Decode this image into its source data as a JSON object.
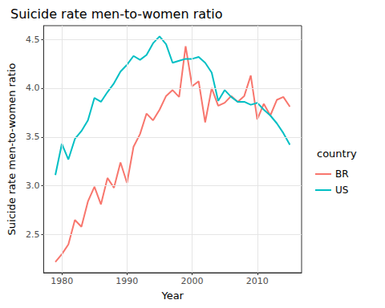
{
  "chart_data": {
    "type": "line",
    "title": "Suicide rate men-to-women ratio",
    "x_label": "Year",
    "y_label": "Suicide rate men-to-women ratio",
    "legend_title": "country",
    "legend": "right",
    "grid": true,
    "x": [
      1979,
      1980,
      1981,
      1982,
      1983,
      1984,
      1985,
      1986,
      1987,
      1988,
      1989,
      1990,
      1991,
      1992,
      1993,
      1994,
      1995,
      1996,
      1997,
      1998,
      1999,
      2000,
      2001,
      2002,
      2003,
      2004,
      2005,
      2006,
      2007,
      2008,
      2009,
      2010,
      2011,
      2012,
      2013,
      2014,
      2015
    ],
    "series": [
      {
        "name": "BR",
        "color": "#F8766D",
        "values": [
          2.22,
          2.3,
          2.4,
          2.65,
          2.58,
          2.84,
          2.99,
          2.81,
          3.08,
          2.98,
          3.24,
          3.03,
          3.4,
          3.53,
          3.74,
          3.67,
          3.78,
          3.92,
          3.98,
          3.91,
          4.43,
          4.02,
          4.07,
          3.65,
          4.0,
          3.82,
          3.85,
          3.92,
          3.86,
          3.92,
          4.13,
          3.68,
          3.84,
          3.72,
          3.88,
          3.91,
          3.81
        ]
      },
      {
        "name": "US",
        "color": "#00BFC4",
        "values": [
          3.11,
          3.43,
          3.27,
          3.48,
          3.56,
          3.67,
          3.9,
          3.86,
          3.96,
          4.05,
          4.17,
          4.24,
          4.33,
          4.29,
          4.34,
          4.46,
          4.53,
          4.45,
          4.26,
          4.28,
          4.3,
          4.3,
          4.32,
          4.26,
          4.16,
          3.87,
          3.98,
          3.91,
          3.86,
          3.86,
          3.83,
          3.85,
          3.78,
          3.72,
          3.64,
          3.54,
          3.42
        ]
      }
    ],
    "xlim": [
      1977.2,
      2016.8
    ],
    "xticks": [
      1980,
      1990,
      2000,
      2010
    ],
    "ylim": [
      2.11,
      4.64
    ],
    "yticks": [
      2.5,
      {
        "value": 3,
        "label": "3.0"
      },
      3.5,
      {
        "value": 4,
        "label": "4.0"
      },
      4.5
    ]
  }
}
